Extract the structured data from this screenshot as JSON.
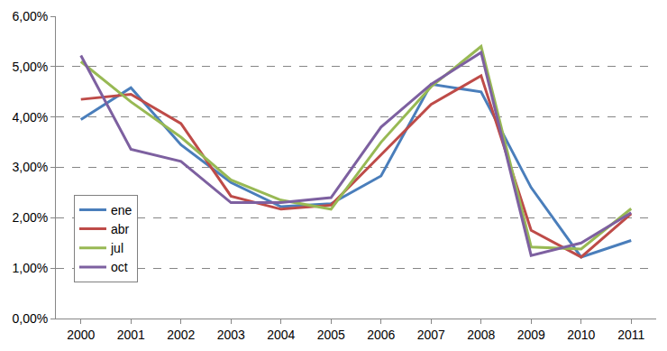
{
  "chart_data": {
    "type": "line",
    "categories": [
      "2000",
      "2001",
      "2002",
      "2003",
      "2004",
      "2005",
      "2006",
      "2007",
      "2008",
      "2009",
      "2010",
      "2011"
    ],
    "series": [
      {
        "name": "ene",
        "color": "#4a7ebb",
        "values": [
          3.95,
          4.58,
          3.45,
          2.7,
          2.22,
          2.28,
          2.83,
          4.65,
          4.5,
          2.6,
          1.22,
          1.55
        ]
      },
      {
        "name": "abr",
        "color": "#be4b48",
        "values": [
          4.35,
          4.45,
          3.87,
          2.43,
          2.17,
          2.25,
          3.25,
          4.25,
          4.82,
          1.75,
          1.22,
          2.08
        ]
      },
      {
        "name": "jul",
        "color": "#98b954",
        "values": [
          5.1,
          4.3,
          3.6,
          2.75,
          2.35,
          2.17,
          3.5,
          4.6,
          5.4,
          1.42,
          1.38,
          2.18
        ]
      },
      {
        "name": "oct",
        "color": "#7d60a0",
        "values": [
          5.22,
          3.36,
          3.12,
          2.3,
          2.3,
          2.4,
          3.8,
          4.65,
          5.28,
          1.25,
          1.5,
          2.1
        ]
      }
    ],
    "ylim": [
      0,
      6
    ],
    "yticks": [
      {
        "value": 0,
        "label": "0,00%"
      },
      {
        "value": 1,
        "label": "1,00%"
      },
      {
        "value": 2,
        "label": "2,00%"
      },
      {
        "value": 3,
        "label": "3,00%"
      },
      {
        "value": 4,
        "label": "4,00%"
      },
      {
        "value": 5,
        "label": "5,00%"
      },
      {
        "value": 6,
        "label": "6,00%"
      }
    ],
    "grid": true,
    "legend": "lower left"
  }
}
